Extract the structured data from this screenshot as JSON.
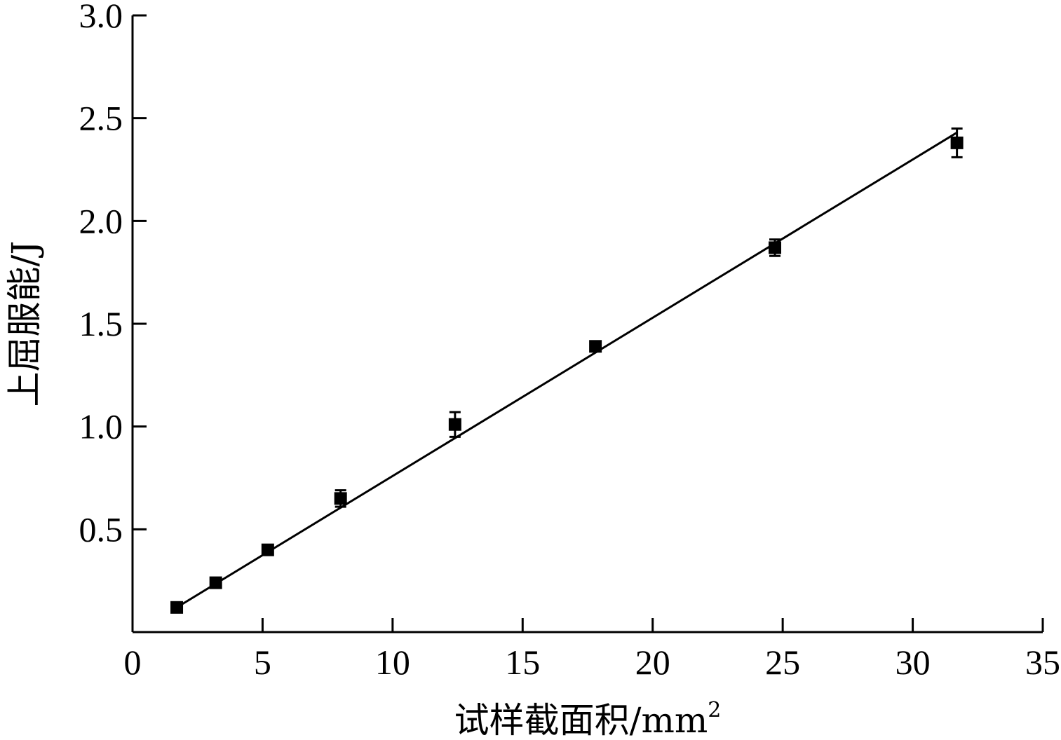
{
  "chart_data": {
    "type": "scatter",
    "xlabel": "试样截面积/mm",
    "xlabel_superscript": "2",
    "ylabel": "上屈服能/J",
    "xlim": [
      0,
      35
    ],
    "ylim": [
      0,
      3.0
    ],
    "x_ticks": [
      0,
      5,
      10,
      15,
      20,
      25,
      30,
      35
    ],
    "x_tick_labels": [
      "0",
      "5",
      "10",
      "15",
      "20",
      "25",
      "30",
      "35"
    ],
    "y_ticks": [
      0.5,
      1.0,
      1.5,
      2.0,
      2.5,
      3.0
    ],
    "y_tick_labels": [
      "0.5",
      "1.0",
      "1.5",
      "2.0",
      "2.5",
      "3.0"
    ],
    "grid": false,
    "series": [
      {
        "marker": "square",
        "x": [
          1.7,
          3.2,
          5.2,
          8.0,
          12.4,
          17.8,
          24.7,
          31.7
        ],
        "y": [
          0.12,
          0.24,
          0.4,
          0.65,
          1.01,
          1.39,
          1.87,
          2.38
        ],
        "error": [
          0.01,
          0.01,
          0.01,
          0.04,
          0.06,
          0.01,
          0.04,
          0.07
        ]
      }
    ],
    "fit_line": {
      "x": [
        1.7,
        31.7
      ],
      "y": [
        0.12,
        2.43
      ]
    }
  }
}
